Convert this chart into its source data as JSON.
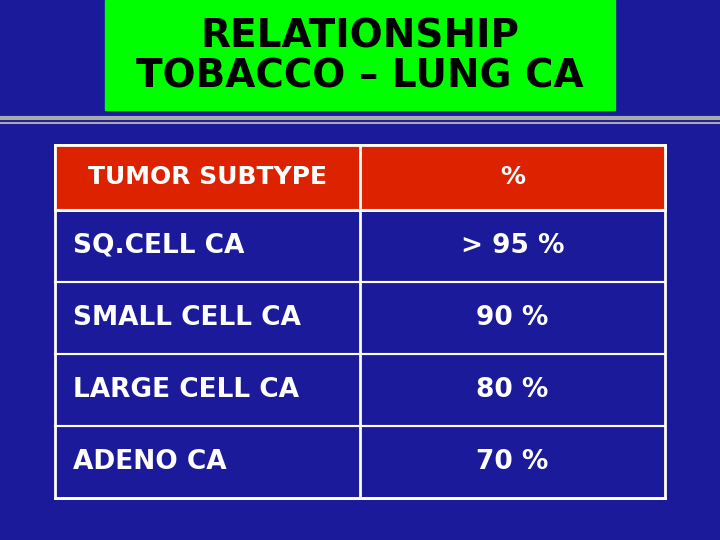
{
  "title_line1": "RELATIONSHIP",
  "title_line2": "TOBACCO – LUNG CA",
  "title_bg_color": "#00FF00",
  "title_text_color": "#000000",
  "bg_color": "#1a1a9a",
  "table_header": [
    "TUMOR SUBTYPE",
    "%"
  ],
  "table_rows": [
    [
      "SQ.CELL CA",
      "> 95 %"
    ],
    [
      "SMALL CELL CA",
      "90 %"
    ],
    [
      "LARGE CELL CA",
      "80 %"
    ],
    [
      "ADENO CA",
      "70 %"
    ]
  ],
  "header_bg": "#dd2200",
  "header_text_color": "#ffffff",
  "row_bg": "#1a1a9a",
  "row_text_color": "#ffffff",
  "table_border_color": "#ffffff",
  "separator_color": "#aaaaaa",
  "title_fontsize": 28,
  "header_fontsize": 18,
  "row_fontsize": 19
}
